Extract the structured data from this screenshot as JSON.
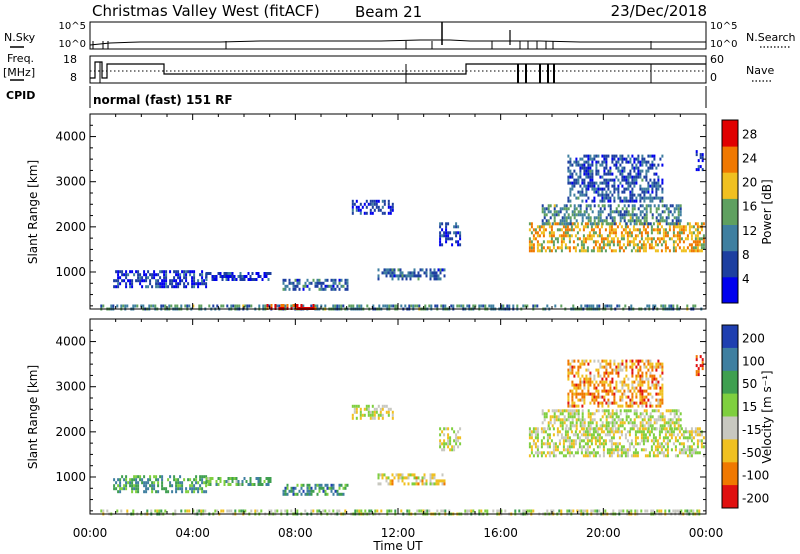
{
  "header": {
    "title": "Christmas Valley West (fitACF)",
    "beam": "Beam 21",
    "date": "23/Dec/2018"
  },
  "strips": {
    "nsky": {
      "label": "N.Sky",
      "ticks": [
        "10^5",
        "10^0"
      ]
    },
    "nsearch": {
      "label": "N.Search",
      "ticks": [
        "10^5",
        "10^0"
      ]
    },
    "freq": {
      "label_line1": "Freq.",
      "label_line2": "[MHz]",
      "ticks": [
        18,
        8
      ]
    },
    "nave": {
      "label": "Nave",
      "ticks": [
        60,
        0
      ]
    },
    "cpid": {
      "label": "CPID",
      "value": "normal (fast) 151 RF"
    }
  },
  "chart_data": [
    {
      "type": "heatmap",
      "name": "power",
      "ylabel": "Slant Range [km]",
      "xlabel": "",
      "xlim": [
        0,
        24
      ],
      "ylim": [
        180,
        4500
      ],
      "yticks": [
        1000,
        2000,
        3000,
        4000
      ],
      "colorbar": {
        "label": "Power [dB]",
        "tick_labels": [
          "4",
          "8",
          "12",
          "16",
          "20",
          "24",
          "28"
        ],
        "range": [
          0,
          30
        ],
        "colors": [
          "#0000ee",
          "#1d3fa0",
          "#3f7fa0",
          "#5fa060",
          "#f0c020",
          "#f07800",
          "#e00000"
        ]
      },
      "regions": [
        {
          "t0": 0.4,
          "t1": 23.8,
          "r0": 180,
          "r1": 280,
          "level": 0.4
        },
        {
          "t0": 6.8,
          "t1": 8.8,
          "r0": 200,
          "r1": 290,
          "level": 0.92
        },
        {
          "t0": 0.9,
          "t1": 4.5,
          "r0": 680,
          "r1": 1040,
          "level": 0.18
        },
        {
          "t0": 4.5,
          "t1": 7.0,
          "r0": 850,
          "r1": 1000,
          "level": 0.15
        },
        {
          "t0": 7.5,
          "t1": 10.0,
          "r0": 650,
          "r1": 850,
          "level": 0.3
        },
        {
          "t0": 11.2,
          "t1": 13.8,
          "r0": 880,
          "r1": 1080,
          "level": 0.28
        },
        {
          "t0": 10.2,
          "t1": 11.8,
          "r0": 2300,
          "r1": 2600,
          "level": 0.15
        },
        {
          "t0": 13.6,
          "t1": 14.4,
          "r0": 1600,
          "r1": 2100,
          "level": 0.15
        },
        {
          "t0": 17.1,
          "t1": 23.9,
          "r0": 1500,
          "r1": 2100,
          "level": 0.66
        },
        {
          "t0": 17.6,
          "t1": 23.0,
          "r0": 2100,
          "r1": 2500,
          "level": 0.4
        },
        {
          "t0": 18.6,
          "t1": 22.3,
          "r0": 2600,
          "r1": 3600,
          "level": 0.26
        },
        {
          "t0": 23.6,
          "t1": 23.9,
          "r0": 3300,
          "r1": 3700,
          "level": 0.15
        }
      ]
    },
    {
      "type": "heatmap",
      "name": "velocity",
      "ylabel": "Slant Range [km]",
      "xlabel": "Time UT",
      "xlim": [
        0,
        24
      ],
      "ylim": [
        180,
        4500
      ],
      "yticks": [
        1000,
        2000,
        3000,
        4000
      ],
      "xtick_labels": [
        "00:00",
        "04:00",
        "08:00",
        "12:00",
        "16:00",
        "20:00",
        "00:00"
      ],
      "colorbar": {
        "label": "Velocity [m s⁻¹]",
        "tick_labels": [
          "200",
          "100",
          "50",
          "15",
          "-15",
          "-50",
          "-100",
          "-200"
        ],
        "colors": [
          "#1f3fb0",
          "#3f7fa0",
          "#3f9f50",
          "#7fcf3f",
          "#c8c8c0",
          "#f0c020",
          "#f07800",
          "#e01010"
        ]
      },
      "regions": [
        {
          "t0": 0.4,
          "t1": 23.8,
          "r0": 180,
          "r1": 280,
          "level": 0.5
        },
        {
          "t0": 0.9,
          "t1": 4.5,
          "r0": 680,
          "r1": 1040,
          "level": 0.3
        },
        {
          "t0": 4.5,
          "t1": 7.0,
          "r0": 850,
          "r1": 1000,
          "level": 0.35
        },
        {
          "t0": 7.5,
          "t1": 10.0,
          "r0": 650,
          "r1": 850,
          "level": 0.25
        },
        {
          "t0": 11.2,
          "t1": 13.8,
          "r0": 880,
          "r1": 1080,
          "level": 0.62
        },
        {
          "t0": 10.2,
          "t1": 11.8,
          "r0": 2300,
          "r1": 2600,
          "level": 0.55
        },
        {
          "t0": 13.6,
          "t1": 14.4,
          "r0": 1600,
          "r1": 2100,
          "level": 0.55
        },
        {
          "t0": 17.1,
          "t1": 23.9,
          "r0": 1500,
          "r1": 2100,
          "level": 0.55
        },
        {
          "t0": 17.6,
          "t1": 23.0,
          "r0": 2100,
          "r1": 2500,
          "level": 0.55
        },
        {
          "t0": 18.6,
          "t1": 22.3,
          "r0": 2600,
          "r1": 3600,
          "level": 0.75
        },
        {
          "t0": 23.6,
          "t1": 23.9,
          "r0": 3300,
          "r1": 3700,
          "level": 0.9
        }
      ]
    }
  ]
}
